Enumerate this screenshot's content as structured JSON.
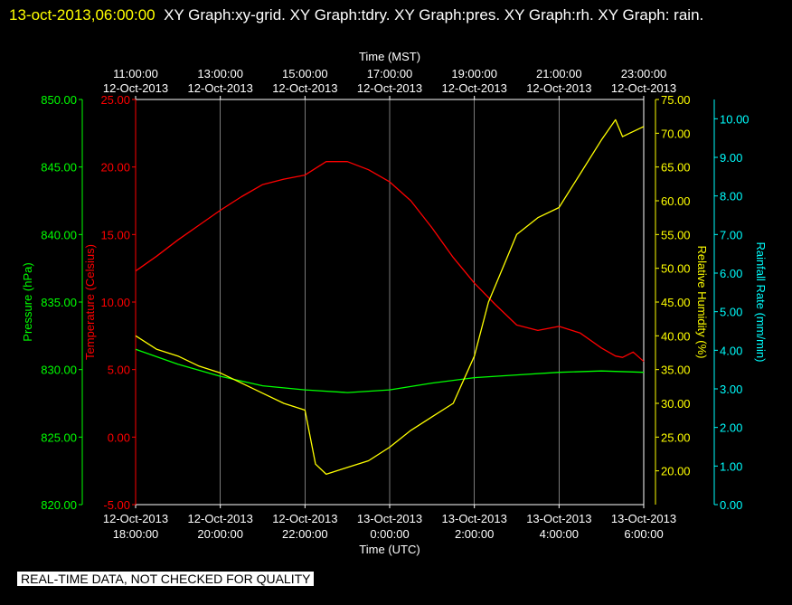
{
  "header": {
    "timestamp": "13-oct-2013,06:00:00",
    "graphs": "XY Graph:xy-grid.  XY Graph:tdry.  XY Graph:pres.  XY Graph:rh.  XY Graph: rain."
  },
  "notice": "REAL-TIME DATA, NOT CHECKED FOR QUALITY",
  "colors": {
    "pressure": "#00ff00",
    "temperature": "#ff0000",
    "humidity": "#ffff00",
    "rain": "#00ffff",
    "grid": "#ffffff",
    "background": "#000000"
  },
  "chart_data": {
    "type": "line",
    "top_axis": {
      "label": "Time (MST)",
      "ticks": [
        {
          "time": "11:00:00",
          "date": "12-Oct-2013"
        },
        {
          "time": "13:00:00",
          "date": "12-Oct-2013"
        },
        {
          "time": "15:00:00",
          "date": "12-Oct-2013"
        },
        {
          "time": "17:00:00",
          "date": "12-Oct-2013"
        },
        {
          "time": "19:00:00",
          "date": "12-Oct-2013"
        },
        {
          "time": "21:00:00",
          "date": "12-Oct-2013"
        },
        {
          "time": "23:00:00",
          "date": "12-Oct-2013"
        }
      ]
    },
    "bottom_axis": {
      "label": "Time (UTC)",
      "range": [
        "2013-10-12 18:00",
        "2013-10-13 06:00"
      ],
      "ticks": [
        {
          "date": "12-Oct-2013",
          "time": "18:00:00"
        },
        {
          "date": "12-Oct-2013",
          "time": "20:00:00"
        },
        {
          "date": "12-Oct-2013",
          "time": "22:00:00"
        },
        {
          "date": "13-Oct-2013",
          "time": "0:00:00"
        },
        {
          "date": "13-Oct-2013",
          "time": "2:00:00"
        },
        {
          "date": "13-Oct-2013",
          "time": "4:00:00"
        },
        {
          "date": "13-Oct-2013",
          "time": "6:00:00"
        }
      ]
    },
    "pressure_axis": {
      "label": "Pressure (hPa)",
      "range": [
        820,
        850
      ],
      "ticks": [
        "820.00",
        "825.00",
        "830.00",
        "835.00",
        "840.00",
        "845.00",
        "850.00"
      ]
    },
    "temperature_axis": {
      "label": "Temperature (Celsius)",
      "range": [
        -5,
        25
      ],
      "ticks": [
        "-5.00",
        "0.00",
        "5.00",
        "10.00",
        "15.00",
        "20.00",
        "25.00"
      ]
    },
    "humidity_axis": {
      "label": "Relative Humidity (%)",
      "range": [
        15,
        75
      ],
      "ticks": [
        "20.00",
        "25.00",
        "30.00",
        "35.00",
        "40.00",
        "45.00",
        "50.00",
        "55.00",
        "60.00",
        "65.00",
        "70.00",
        "75.00"
      ]
    },
    "rain_axis": {
      "label": "Rainfall Rate (mm/min)",
      "range": [
        0,
        10.5
      ],
      "ticks": [
        "0.00",
        "1.00",
        "2.00",
        "3.00",
        "4.00",
        "5.00",
        "6.00",
        "7.00",
        "8.00",
        "9.00",
        "10.00"
      ]
    },
    "series": [
      {
        "key": "temperature",
        "x": [
          "2013-10-12 18:00",
          "2013-10-12 18:30",
          "2013-10-12 19:00",
          "2013-10-12 19:30",
          "2013-10-12 20:00",
          "2013-10-12 20:30",
          "2013-10-12 21:00",
          "2013-10-12 21:30",
          "2013-10-12 22:00",
          "2013-10-12 22:30",
          "2013-10-12 23:00",
          "2013-10-12 23:30",
          "2013-10-13 00:00",
          "2013-10-13 00:30",
          "2013-10-13 01:00",
          "2013-10-13 01:30",
          "2013-10-13 02:00",
          "2013-10-13 02:30",
          "2013-10-13 03:00",
          "2013-10-13 03:30",
          "2013-10-13 04:00",
          "2013-10-13 04:30",
          "2013-10-13 05:00",
          "2013-10-13 05:20",
          "2013-10-13 05:30",
          "2013-10-13 05:45",
          "2013-10-13 06:00"
        ],
        "values": [
          12.3,
          13.4,
          14.6,
          15.7,
          16.8,
          17.8,
          18.7,
          19.1,
          19.4,
          20.4,
          20.4,
          19.8,
          18.9,
          17.5,
          15.5,
          13.3,
          11.4,
          9.8,
          8.3,
          7.9,
          8.2,
          7.7,
          6.6,
          6.0,
          5.9,
          6.3,
          5.6
        ]
      },
      {
        "key": "pressure",
        "x": [
          "2013-10-12 18:00",
          "2013-10-12 19:00",
          "2013-10-12 20:00",
          "2013-10-12 21:00",
          "2013-10-12 22:00",
          "2013-10-12 23:00",
          "2013-10-13 00:00",
          "2013-10-13 01:00",
          "2013-10-13 02:00",
          "2013-10-13 03:00",
          "2013-10-13 04:00",
          "2013-10-13 05:00",
          "2013-10-13 06:00"
        ],
        "values": [
          831.5,
          830.4,
          829.5,
          828.8,
          828.5,
          828.3,
          828.5,
          829.0,
          829.4,
          829.6,
          829.8,
          829.9,
          829.8
        ]
      },
      {
        "key": "humidity",
        "x": [
          "2013-10-12 18:00",
          "2013-10-12 18:30",
          "2013-10-12 19:00",
          "2013-10-12 19:30",
          "2013-10-12 20:00",
          "2013-10-12 20:30",
          "2013-10-12 21:00",
          "2013-10-12 21:30",
          "2013-10-12 22:00",
          "2013-10-12 22:15",
          "2013-10-12 22:30",
          "2013-10-12 23:00",
          "2013-10-12 23:30",
          "2013-10-13 00:00",
          "2013-10-13 00:30",
          "2013-10-13 01:00",
          "2013-10-13 01:30",
          "2013-10-13 02:00",
          "2013-10-13 02:20",
          "2013-10-13 02:40",
          "2013-10-13 03:00",
          "2013-10-13 03:30",
          "2013-10-13 04:00",
          "2013-10-13 04:30",
          "2013-10-13 05:00",
          "2013-10-13 05:20",
          "2013-10-13 05:30",
          "2013-10-13 05:40",
          "2013-10-13 06:00"
        ],
        "values": [
          40,
          38,
          37,
          35.5,
          34.5,
          33,
          31.5,
          30,
          29,
          21,
          19.5,
          20.5,
          21.5,
          23.5,
          26,
          28,
          30,
          37,
          45,
          50,
          55,
          57.5,
          59,
          64,
          69,
          72,
          69.5,
          70,
          71
        ]
      }
    ]
  }
}
